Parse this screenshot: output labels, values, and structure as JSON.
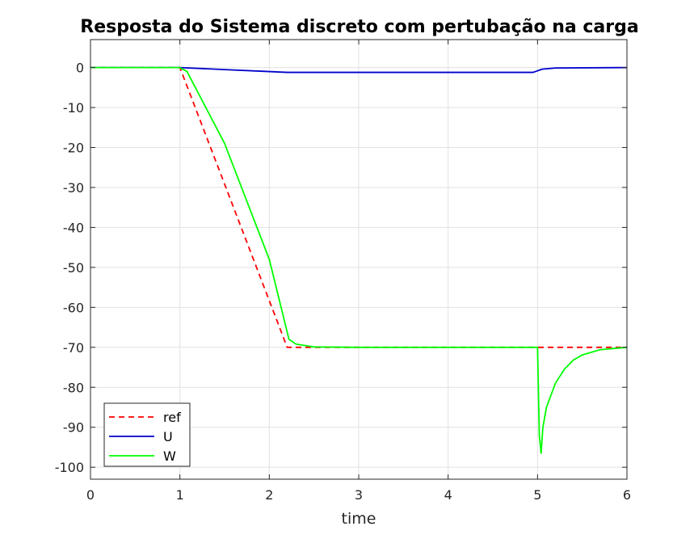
{
  "chart_data": {
    "type": "line",
    "title": "Resposta do Sistema discreto com pertubação na carga",
    "xlabel": "time",
    "ylabel": "",
    "xlim": [
      0,
      6
    ],
    "ylim": [
      -103,
      7
    ],
    "xticks": [
      0,
      1,
      2,
      3,
      4,
      5,
      6
    ],
    "yticks": [
      0,
      -10,
      -20,
      -30,
      -40,
      -50,
      -60,
      -70,
      -80,
      -90,
      -100
    ],
    "grid": true,
    "legend_position": "bottom-left",
    "series": [
      {
        "name": "ref",
        "color": "#ff0000",
        "style": "dashed",
        "points": [
          [
            0,
            0
          ],
          [
            1.0,
            0
          ],
          [
            2.2,
            -70
          ],
          [
            5.0,
            -70
          ],
          [
            6.0,
            -70
          ]
        ]
      },
      {
        "name": "U",
        "color": "#0000cc",
        "style": "solid",
        "points": [
          [
            0,
            0
          ],
          [
            1.0,
            0
          ],
          [
            1.5,
            -0.5
          ],
          [
            2.0,
            -1.0
          ],
          [
            2.2,
            -1.2
          ],
          [
            3.0,
            -1.2
          ],
          [
            4.0,
            -1.2
          ],
          [
            4.95,
            -1.2
          ],
          [
            5.05,
            -0.4
          ],
          [
            5.2,
            -0.1
          ],
          [
            6.0,
            0
          ]
        ]
      },
      {
        "name": "W",
        "color": "#00ff00",
        "style": "solid",
        "points": [
          [
            0,
            0
          ],
          [
            1.0,
            0
          ],
          [
            1.08,
            -1
          ],
          [
            1.5,
            -19
          ],
          [
            2.0,
            -48
          ],
          [
            2.22,
            -68
          ],
          [
            2.3,
            -69.2
          ],
          [
            2.5,
            -69.9
          ],
          [
            3.0,
            -70
          ],
          [
            4.0,
            -70
          ],
          [
            4.99,
            -70
          ],
          [
            5.0,
            -70
          ],
          [
            5.02,
            -92
          ],
          [
            5.04,
            -96.5
          ],
          [
            5.06,
            -90
          ],
          [
            5.1,
            -85
          ],
          [
            5.2,
            -79
          ],
          [
            5.3,
            -75.5
          ],
          [
            5.4,
            -73.2
          ],
          [
            5.5,
            -71.9
          ],
          [
            5.7,
            -70.6
          ],
          [
            6.0,
            -70
          ]
        ]
      }
    ]
  }
}
